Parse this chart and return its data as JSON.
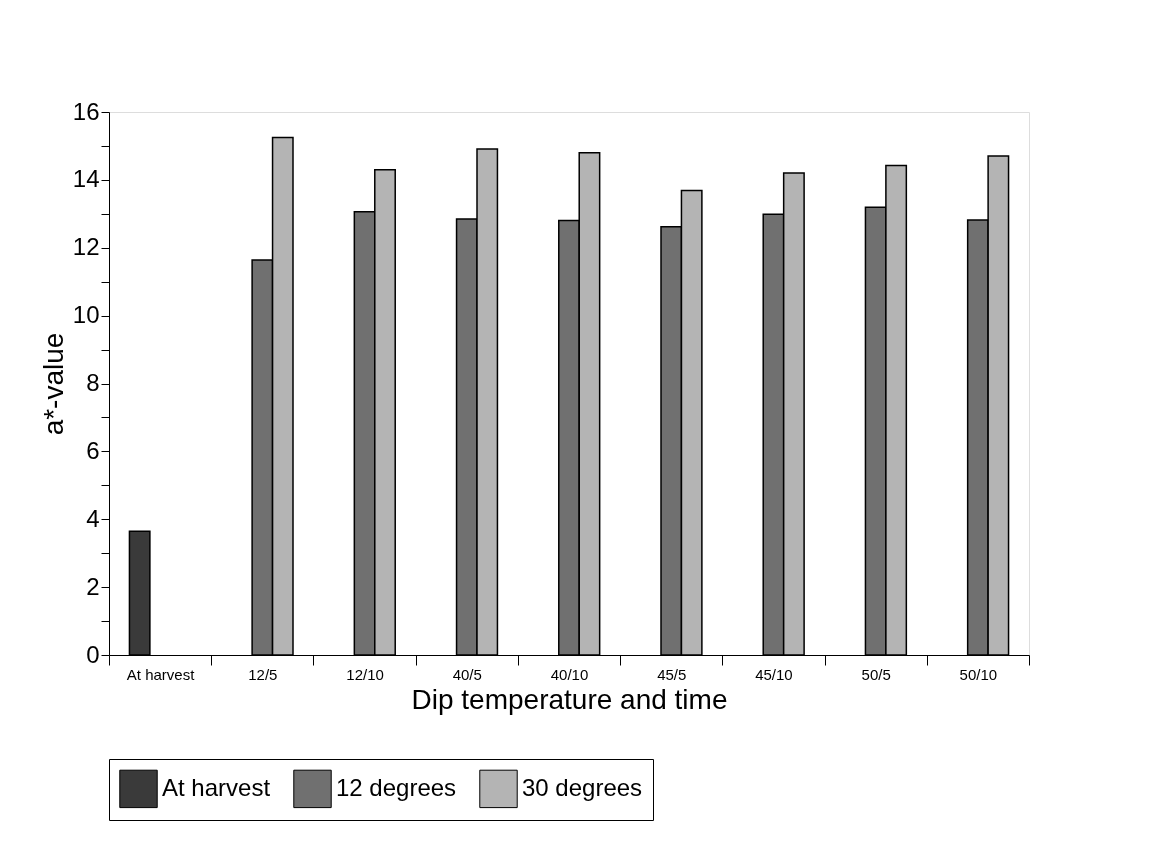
{
  "chart_data": {
    "type": "bar",
    "xlabel": "Dip temperature and time",
    "ylabel": "a*-value",
    "categories": [
      "At harvest",
      "12/5",
      "12/10",
      "40/5",
      "40/10",
      "45/5",
      "45/10",
      "50/5",
      "50/10"
    ],
    "series": [
      {
        "name": "At harvest",
        "color": "#3a3a3a",
        "values": [
          3.65,
          null,
          null,
          null,
          null,
          null,
          null,
          null,
          null
        ]
      },
      {
        "name": "12 degrees",
        "color": "#707070",
        "values": [
          null,
          11.64,
          13.06,
          12.85,
          12.8,
          12.62,
          12.99,
          13.19,
          12.82
        ]
      },
      {
        "name": "30 degrees",
        "color": "#b4b4b4",
        "values": [
          null,
          15.25,
          14.3,
          14.91,
          14.8,
          13.69,
          14.2,
          14.42,
          14.7
        ]
      }
    ],
    "ylim": [
      0,
      16
    ],
    "yticks": [
      0,
      {
        "value": 1,
        "label": null
      },
      2,
      {
        "value": 3,
        "label": null
      },
      4,
      {
        "value": 5,
        "label": null
      },
      6,
      {
        "value": 7,
        "label": null
      },
      8,
      {
        "value": 9,
        "label": null
      },
      10,
      {
        "value": 11,
        "label": null
      },
      12,
      {
        "value": 13,
        "label": null
      },
      14,
      {
        "value": 15,
        "label": null
      },
      16
    ],
    "grid": false,
    "legend": "bottom"
  }
}
